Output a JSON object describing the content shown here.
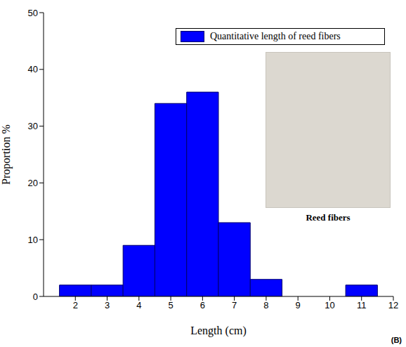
{
  "chart_data": {
    "type": "histogram",
    "x_label": "Length (cm)",
    "y_label": "Proportion %",
    "bins": [
      1.5,
      2.5,
      3.5,
      4.5,
      5.5,
      6.5,
      7.5,
      8.5,
      9.5,
      10.5,
      11.5
    ],
    "series": [
      {
        "name": "Quantitative length of reed fibers",
        "color": "#0000ff",
        "values": [
          2,
          2,
          9,
          34,
          36,
          13,
          3,
          0,
          0,
          2
        ]
      }
    ],
    "xlim": [
      1,
      12
    ],
    "xticks": [
      2,
      3,
      4,
      5,
      6,
      7,
      8,
      9,
      10,
      11,
      12
    ],
    "ylim": [
      0,
      50
    ],
    "yticks": [
      0,
      10,
      20,
      30,
      40,
      50
    ],
    "legend": "upper right",
    "grid": false,
    "annotations": [
      "Reed fibers",
      "(B)"
    ]
  }
}
